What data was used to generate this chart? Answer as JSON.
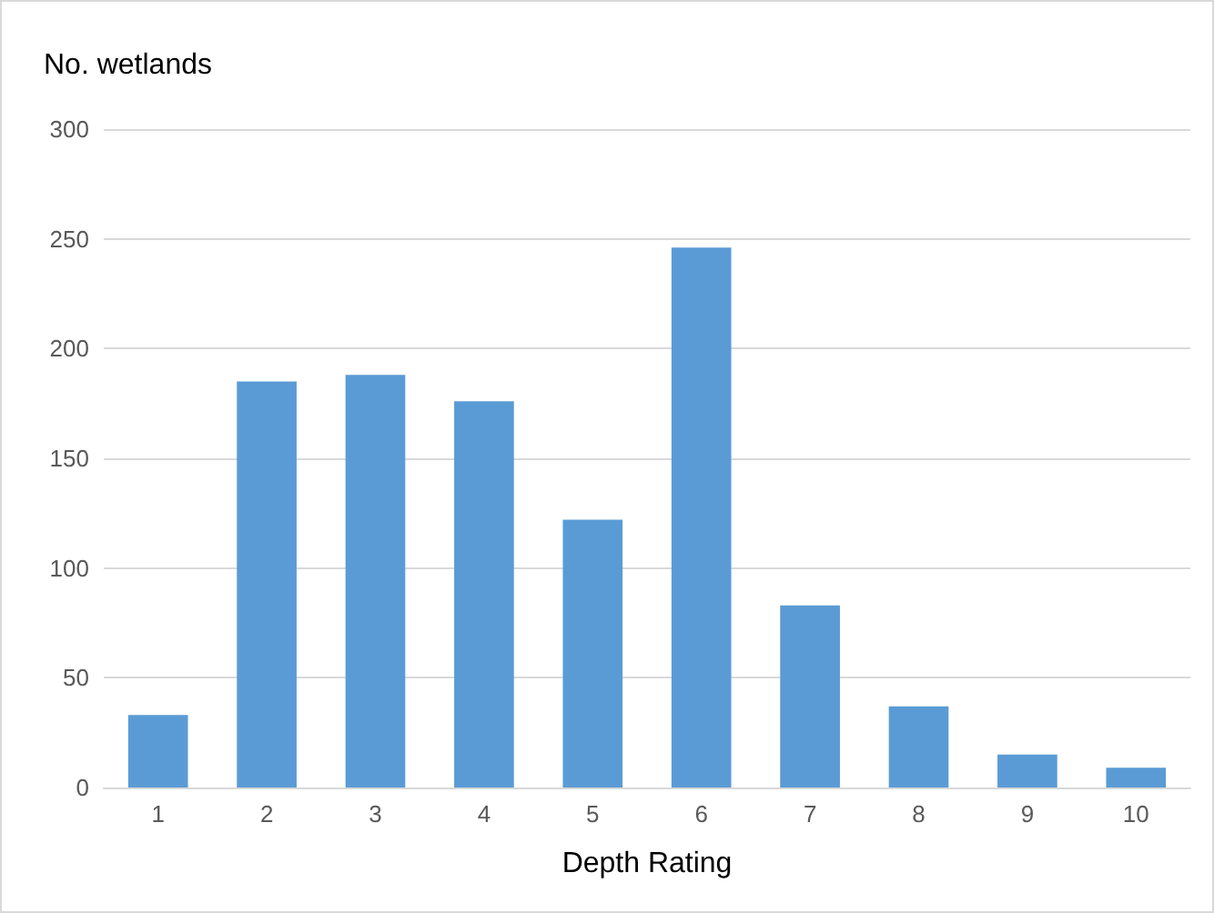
{
  "chart_data": {
    "type": "bar",
    "ylabel": "No. wetlands",
    "xlabel": "Depth Rating",
    "categories": [
      "1",
      "2",
      "3",
      "4",
      "5",
      "6",
      "7",
      "8",
      "9",
      "10"
    ],
    "values": [
      33,
      185,
      188,
      176,
      122,
      246,
      83,
      37,
      15,
      9
    ],
    "color": "#5b9bd5",
    "ylim": [
      0,
      300
    ],
    "yticks": [
      0,
      50,
      100,
      150,
      200,
      250,
      300
    ],
    "grid": "y"
  }
}
